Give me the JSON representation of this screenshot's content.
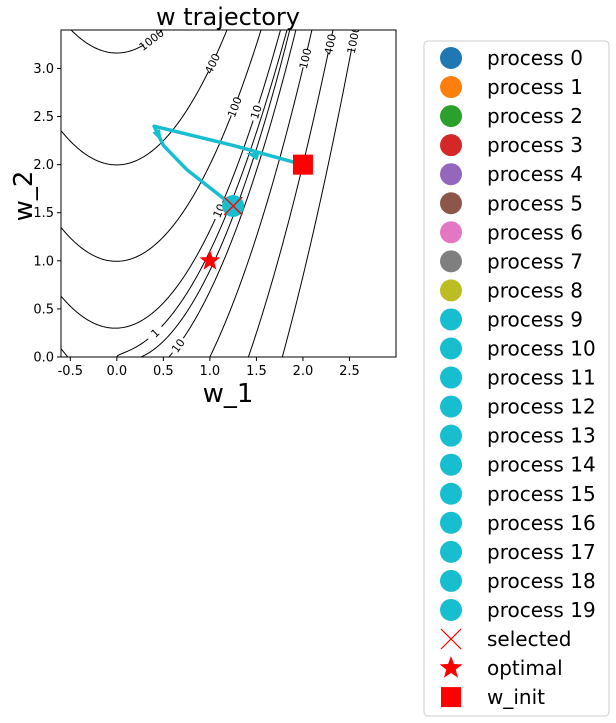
{
  "chart_data": {
    "type": "line",
    "title": "w trajectory",
    "xlabel": "w_1",
    "ylabel": "w_2",
    "xlim": [
      -0.6,
      3.0
    ],
    "ylim": [
      0.0,
      3.4
    ],
    "xticks": [
      "-0.5",
      "0.0",
      "0.5",
      "1.0",
      "1.5",
      "2.0",
      "2.5"
    ],
    "xtick_values": [
      -0.5,
      0.0,
      0.5,
      1.0,
      1.5,
      2.0,
      2.5
    ],
    "yticks": [
      "0.0",
      "0.5",
      "1.0",
      "1.5",
      "2.0",
      "2.5",
      "3.0"
    ],
    "ytick_values": [
      0.0,
      0.5,
      1.0,
      1.5,
      2.0,
      2.5,
      3.0
    ],
    "grid": false,
    "contours": {
      "function": "(1 - w_1)^2 + 100 (w_2 - w_1^2)^2",
      "levels": [
        1,
        10,
        100,
        400,
        1000
      ],
      "labels": [
        "1",
        "10",
        "100",
        "400",
        "1000"
      ],
      "line_color": "#000000"
    },
    "trajectory": {
      "color": "#17becf",
      "x": [
        2.0,
        1.25,
        0.4,
        0.5,
        0.75,
        1.25
      ],
      "y": [
        2.0,
        2.2,
        2.4,
        2.2,
        1.95,
        1.57
      ]
    },
    "markers": {
      "w_init": {
        "x": 2.0,
        "y": 2.0,
        "color": "#ff0000"
      },
      "optimal": {
        "x": 1.0,
        "y": 1.0,
        "color": "#ff0000"
      },
      "selected": {
        "x": 1.25,
        "y": 1.57,
        "color": "#ff0000"
      },
      "final_process": {
        "x": 1.25,
        "y": 1.57,
        "color": "#17becf"
      }
    },
    "legend": {
      "placement": "outside right",
      "entries": [
        {
          "label": "process 0",
          "marker": "circle",
          "color": "#1f77b4"
        },
        {
          "label": "process 1",
          "marker": "circle",
          "color": "#ff7f0e"
        },
        {
          "label": "process 2",
          "marker": "circle",
          "color": "#2ca02c"
        },
        {
          "label": "process 3",
          "marker": "circle",
          "color": "#d62728"
        },
        {
          "label": "process 4",
          "marker": "circle",
          "color": "#9467bd"
        },
        {
          "label": "process 5",
          "marker": "circle",
          "color": "#8c564b"
        },
        {
          "label": "process 6",
          "marker": "circle",
          "color": "#e377c2"
        },
        {
          "label": "process 7",
          "marker": "circle",
          "color": "#7f7f7f"
        },
        {
          "label": "process 8",
          "marker": "circle",
          "color": "#bcbd22"
        },
        {
          "label": "process 9",
          "marker": "circle",
          "color": "#17becf"
        },
        {
          "label": "process 10",
          "marker": "circle",
          "color": "#17becf"
        },
        {
          "label": "process 11",
          "marker": "circle",
          "color": "#17becf"
        },
        {
          "label": "process 12",
          "marker": "circle",
          "color": "#17becf"
        },
        {
          "label": "process 13",
          "marker": "circle",
          "color": "#17becf"
        },
        {
          "label": "process 14",
          "marker": "circle",
          "color": "#17becf"
        },
        {
          "label": "process 15",
          "marker": "circle",
          "color": "#17becf"
        },
        {
          "label": "process 16",
          "marker": "circle",
          "color": "#17becf"
        },
        {
          "label": "process 17",
          "marker": "circle",
          "color": "#17becf"
        },
        {
          "label": "process 18",
          "marker": "circle",
          "color": "#17becf"
        },
        {
          "label": "process 19",
          "marker": "circle",
          "color": "#17becf"
        },
        {
          "label": "selected",
          "marker": "x",
          "color": "#ff0000"
        },
        {
          "label": "optimal",
          "marker": "star",
          "color": "#ff0000"
        },
        {
          "label": "w_init",
          "marker": "square",
          "color": "#ff0000"
        }
      ]
    }
  }
}
